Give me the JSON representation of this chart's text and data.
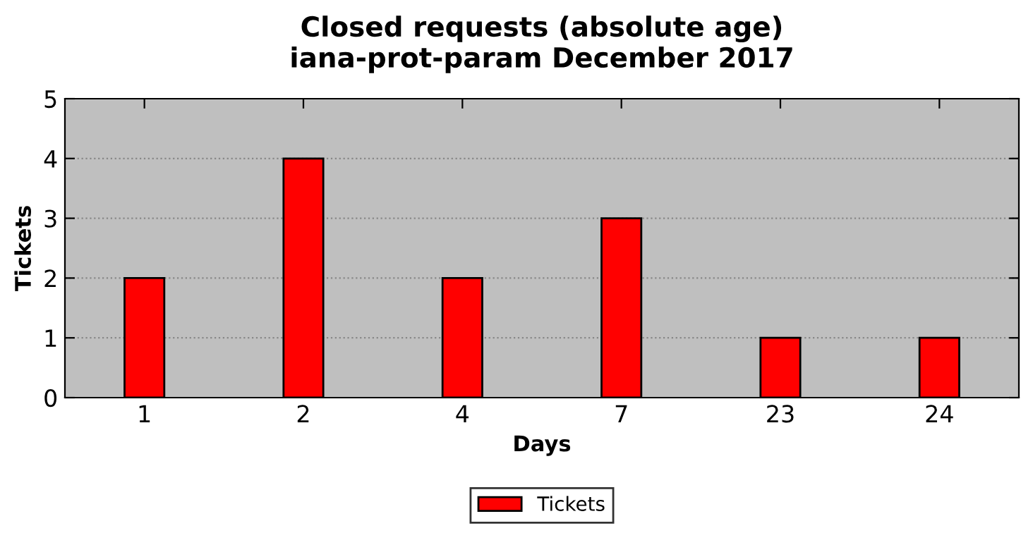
{
  "chart_data": {
    "type": "bar",
    "title": "Closed requests (absolute age)\niana-prot-param December 2017",
    "xlabel": "Days",
    "ylabel": "Tickets",
    "categories": [
      "1",
      "2",
      "4",
      "7",
      "23",
      "24"
    ],
    "series": [
      {
        "name": "Tickets",
        "color": "#ff0000",
        "values": [
          2,
          4,
          2,
          3,
          1,
          1
        ]
      }
    ],
    "ylim": [
      0,
      5
    ],
    "yticks": [
      0,
      1,
      2,
      3,
      4,
      5
    ],
    "grid": "y",
    "legend": "bottom"
  }
}
